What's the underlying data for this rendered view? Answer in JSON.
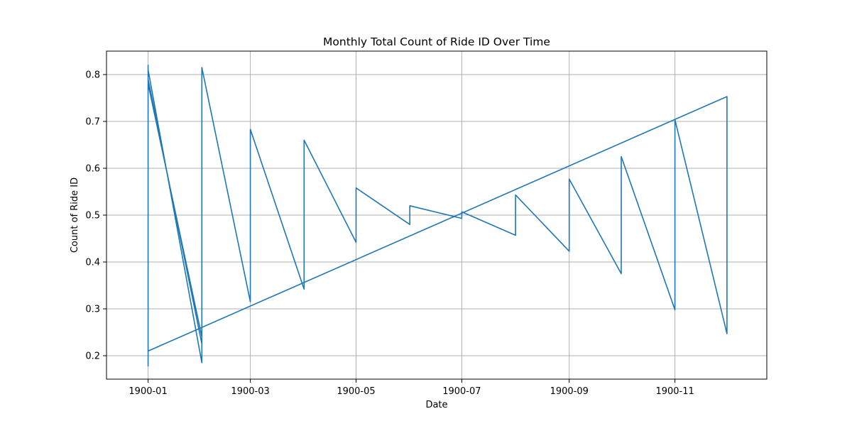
{
  "chart_data": {
    "type": "line",
    "title": "Monthly Total Count of Ride ID Over Time",
    "xlabel": "Date",
    "ylabel": "Count of Ride ID",
    "x_axis_type": "date",
    "xlim": [
      "1899-12-08",
      "1900-12-24"
    ],
    "ylim": [
      0.15,
      0.85
    ],
    "x_ticks": [
      {
        "date": "1900-01-01",
        "label": "1900-01"
      },
      {
        "date": "1900-03-01",
        "label": "1900-03"
      },
      {
        "date": "1900-05-01",
        "label": "1900-05"
      },
      {
        "date": "1900-07-01",
        "label": "1900-07"
      },
      {
        "date": "1900-09-01",
        "label": "1900-09"
      },
      {
        "date": "1900-11-01",
        "label": "1900-11"
      }
    ],
    "y_ticks": [
      0.2,
      0.3,
      0.4,
      0.5,
      0.6,
      0.7,
      0.8
    ],
    "grid": true,
    "line_color": "#1f77b4",
    "series": [
      {
        "x": [
          "1900-01-01",
          "1900-01-01",
          "1900-01-01",
          "1900-01-01",
          "1900-02-01",
          "1900-02-01",
          "1900-01-01",
          "1900-01-01",
          "1900-02-01",
          "1900-02-01",
          "1900-03-01",
          "1900-03-01",
          "1900-04-01",
          "1900-04-01",
          "1900-05-01",
          "1900-05-01",
          "1900-06-01",
          "1900-06-01",
          "1900-07-01",
          "1900-07-01",
          "1900-08-01",
          "1900-08-01",
          "1900-09-01",
          "1900-09-01",
          "1900-10-01",
          "1900-10-01",
          "1900-11-01",
          "1900-11-01",
          "1900-12-01",
          "1900-12-01",
          "1900-01-01"
        ],
        "values": [
          0.21,
          0.82,
          0.178,
          0.79,
          0.225,
          0.24,
          0.78,
          0.81,
          0.185,
          0.815,
          0.315,
          0.683,
          0.342,
          0.66,
          0.442,
          0.558,
          0.48,
          0.52,
          0.493,
          0.507,
          0.457,
          0.543,
          0.423,
          0.577,
          0.375,
          0.625,
          0.298,
          0.704,
          0.247,
          0.753,
          0.21
        ]
      }
    ]
  }
}
